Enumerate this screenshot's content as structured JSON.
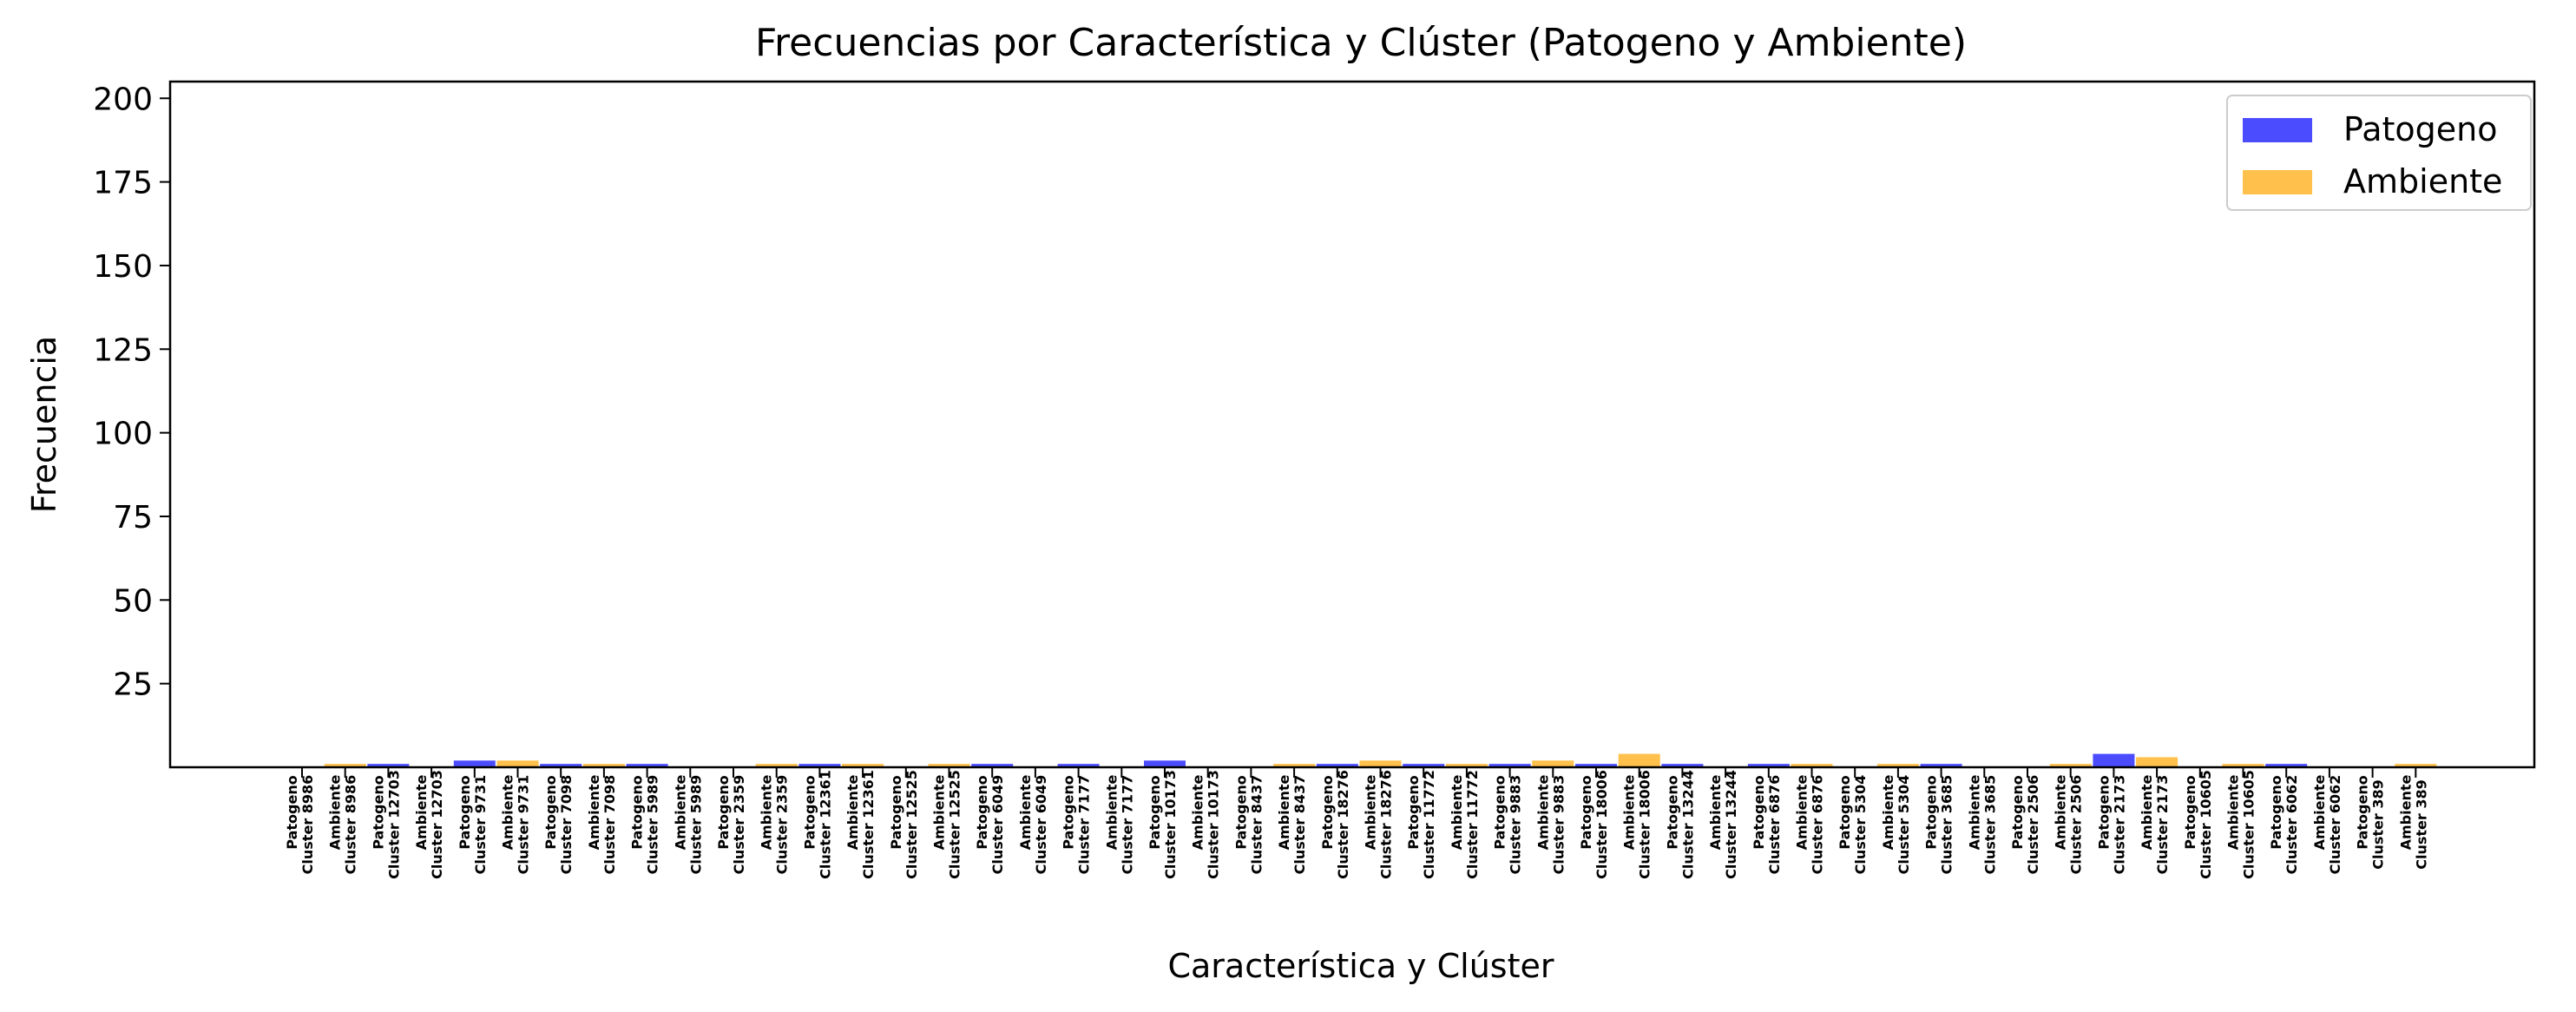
{
  "chart_data": {
    "type": "bar",
    "title": "Frecuencias por Característica y Clúster (Patogeno y Ambiente)",
    "xlabel": "Característica y Clúster",
    "ylabel": "Frecuencia",
    "ylim": [
      0,
      205
    ],
    "yticks": [
      25,
      50,
      75,
      100,
      125,
      150,
      175,
      200
    ],
    "grid": false,
    "legend_position": "top-right",
    "categories": [
      {
        "line1": "Patogeno",
        "line2": "Cluster 8986"
      },
      {
        "line1": "Ambiente",
        "line2": "Cluster 8986"
      },
      {
        "line1": "Patogeno",
        "line2": "Cluster 12703"
      },
      {
        "line1": "Ambiente",
        "line2": "Cluster 12703"
      },
      {
        "line1": "Patogeno",
        "line2": "Cluster 9731"
      },
      {
        "line1": "Ambiente",
        "line2": "Cluster 9731"
      },
      {
        "line1": "Patogeno",
        "line2": "Cluster 7098"
      },
      {
        "line1": "Ambiente",
        "line2": "Cluster 7098"
      },
      {
        "line1": "Patogeno",
        "line2": "Cluster 5989"
      },
      {
        "line1": "Ambiente",
        "line2": "Cluster 5989"
      },
      {
        "line1": "Patogeno",
        "line2": "Cluster 2359"
      },
      {
        "line1": "Ambiente",
        "line2": "Cluster 2359"
      },
      {
        "line1": "Patogeno",
        "line2": "Cluster 12361"
      },
      {
        "line1": "Ambiente",
        "line2": "Cluster 12361"
      },
      {
        "line1": "Patogeno",
        "line2": "Cluster 12525"
      },
      {
        "line1": "Ambiente",
        "line2": "Cluster 12525"
      },
      {
        "line1": "Patogeno",
        "line2": "Cluster 6049"
      },
      {
        "line1": "Ambiente",
        "line2": "Cluster 6049"
      },
      {
        "line1": "Patogeno",
        "line2": "Cluster 7177"
      },
      {
        "line1": "Ambiente",
        "line2": "Cluster 7177"
      },
      {
        "line1": "Patogeno",
        "line2": "Cluster 10173"
      },
      {
        "line1": "Ambiente",
        "line2": "Cluster 10173"
      },
      {
        "line1": "Patogeno",
        "line2": "Cluster 8437"
      },
      {
        "line1": "Ambiente",
        "line2": "Cluster 8437"
      },
      {
        "line1": "Patogeno",
        "line2": "Cluster 18276"
      },
      {
        "line1": "Ambiente",
        "line2": "Cluster 18276"
      },
      {
        "line1": "Patogeno",
        "line2": "Cluster 11772"
      },
      {
        "line1": "Ambiente",
        "line2": "Cluster 11772"
      },
      {
        "line1": "Patogeno",
        "line2": "Cluster 9883"
      },
      {
        "line1": "Ambiente",
        "line2": "Cluster 9883"
      },
      {
        "line1": "Patogeno",
        "line2": "Cluster 18006"
      },
      {
        "line1": "Ambiente",
        "line2": "Cluster 18006"
      },
      {
        "line1": "Patogeno",
        "line2": "Cluster 13244"
      },
      {
        "line1": "Ambiente",
        "line2": "Cluster 13244"
      },
      {
        "line1": "Patogeno",
        "line2": "Cluster 6876"
      },
      {
        "line1": "Ambiente",
        "line2": "Cluster 6876"
      },
      {
        "line1": "Patogeno",
        "line2": "Cluster 5304"
      },
      {
        "line1": "Ambiente",
        "line2": "Cluster 5304"
      },
      {
        "line1": "Patogeno",
        "line2": "Cluster 3685"
      },
      {
        "line1": "Ambiente",
        "line2": "Cluster 3685"
      },
      {
        "line1": "Patogeno",
        "line2": "Cluster 2506"
      },
      {
        "line1": "Ambiente",
        "line2": "Cluster 2506"
      },
      {
        "line1": "Patogeno",
        "line2": "Cluster 2173"
      },
      {
        "line1": "Ambiente",
        "line2": "Cluster 2173"
      },
      {
        "line1": "Patogeno",
        "line2": "Cluster 10605"
      },
      {
        "line1": "Ambiente",
        "line2": "Cluster 10605"
      },
      {
        "line1": "Patogeno",
        "line2": "Cluster 6062"
      },
      {
        "line1": "Ambiente",
        "line2": "Cluster 6062"
      },
      {
        "line1": "Patogeno",
        "line2": "Cluster 389"
      },
      {
        "line1": "Ambiente",
        "line2": "Cluster 389"
      }
    ],
    "series": [
      {
        "name": "Patogeno",
        "color": "#0000ff",
        "alpha": 0.7,
        "values": [
          0,
          null,
          1,
          null,
          2,
          null,
          1,
          null,
          1,
          null,
          0,
          null,
          1,
          null,
          0,
          null,
          1,
          null,
          1,
          null,
          2,
          null,
          0,
          null,
          1,
          null,
          1,
          null,
          1,
          null,
          1,
          null,
          1,
          null,
          1,
          null,
          0,
          null,
          1,
          null,
          0,
          null,
          4,
          null,
          0,
          null,
          1,
          null,
          0,
          null
        ]
      },
      {
        "name": "Ambiente",
        "color": "#ffa500",
        "alpha": 0.7,
        "values": [
          null,
          1,
          null,
          0,
          null,
          2,
          null,
          1,
          null,
          0,
          null,
          1,
          null,
          1,
          null,
          1,
          null,
          0,
          null,
          0,
          null,
          0,
          null,
          1,
          null,
          2,
          null,
          1,
          null,
          2,
          null,
          4,
          null,
          0,
          null,
          1,
          null,
          1,
          null,
          0,
          null,
          1,
          null,
          3,
          null,
          1,
          null,
          0,
          null,
          1
        ]
      }
    ]
  }
}
